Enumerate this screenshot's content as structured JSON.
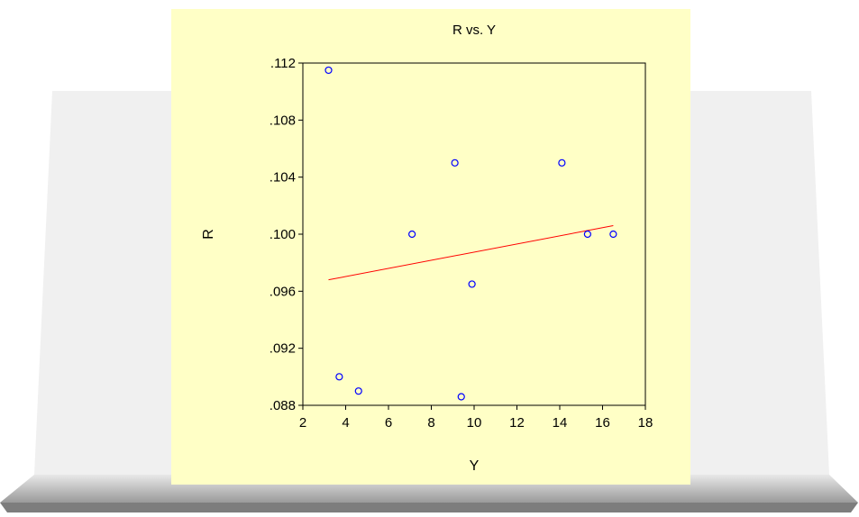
{
  "chart_data": {
    "type": "scatter",
    "title": "R vs. Y",
    "xlabel": "Y",
    "ylabel": "R",
    "xlim": [
      2,
      18
    ],
    "ylim": [
      0.088,
      0.112
    ],
    "x_ticks": [
      {
        "value": 2,
        "label": "2"
      },
      {
        "value": 4,
        "label": "4"
      },
      {
        "value": 6,
        "label": "6"
      },
      {
        "value": 8,
        "label": "8"
      },
      {
        "value": 10,
        "label": "10"
      },
      {
        "value": 12,
        "label": "12"
      },
      {
        "value": 14,
        "label": "14"
      },
      {
        "value": 16,
        "label": "16"
      },
      {
        "value": 18,
        "label": "18"
      }
    ],
    "y_ticks": [
      {
        "value": 0.088,
        "label": ".088"
      },
      {
        "value": 0.092,
        "label": ".092"
      },
      {
        "value": 0.096,
        "label": ".096"
      },
      {
        "value": 0.1,
        "label": ".100"
      },
      {
        "value": 0.104,
        "label": ".104"
      },
      {
        "value": 0.108,
        "label": ".108"
      },
      {
        "value": 0.112,
        "label": ".112"
      }
    ],
    "points": [
      {
        "x": 3.2,
        "y": 0.1115
      },
      {
        "x": 3.7,
        "y": 0.09
      },
      {
        "x": 4.6,
        "y": 0.089
      },
      {
        "x": 7.1,
        "y": 0.1
      },
      {
        "x": 9.1,
        "y": 0.105
      },
      {
        "x": 9.4,
        "y": 0.0886
      },
      {
        "x": 9.9,
        "y": 0.0965
      },
      {
        "x": 14.1,
        "y": 0.105
      },
      {
        "x": 15.3,
        "y": 0.1
      },
      {
        "x": 16.5,
        "y": 0.1
      }
    ],
    "fit_line": {
      "x": [
        3.2,
        16.5
      ],
      "y": [
        0.0968,
        0.1006
      ]
    },
    "grid": false,
    "colors": {
      "points": "#0000ff",
      "fit_line": "#ff0000",
      "background": "#ffffc6"
    }
  }
}
